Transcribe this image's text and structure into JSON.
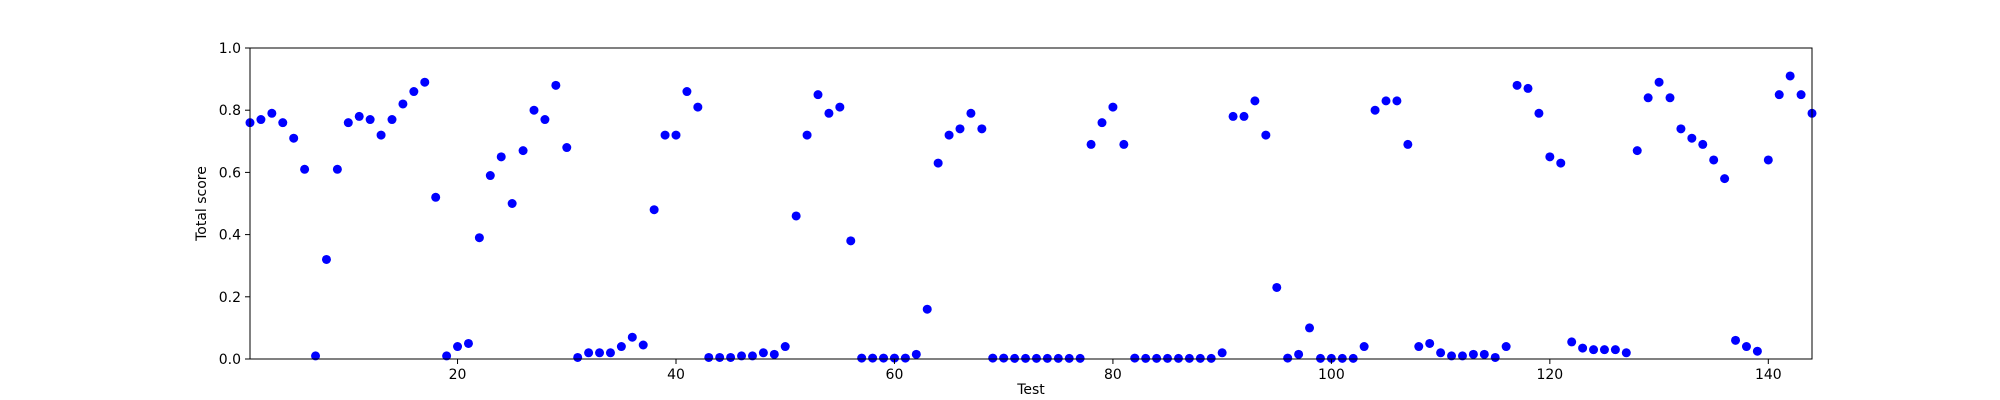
{
  "chart_data": {
    "type": "scatter",
    "title": "",
    "xlabel": "Test",
    "ylabel": "Total score",
    "xlim": [
      1,
      144
    ],
    "ylim": [
      0,
      1.0
    ],
    "x_ticks": [
      20,
      40,
      60,
      80,
      100,
      120,
      140
    ],
    "y_ticks": [
      0.0,
      0.2,
      0.4,
      0.6,
      0.8,
      1.0
    ],
    "x_tick_labels": [
      "20",
      "40",
      "60",
      "80",
      "100",
      "120",
      "140"
    ],
    "y_tick_labels": [
      "0.0",
      "0.2",
      "0.4",
      "0.6",
      "0.8",
      "1.0"
    ],
    "grid": false,
    "marker_color": "#0000ff",
    "series": [
      {
        "x": [
          1,
          2,
          3,
          4,
          5,
          6,
          7,
          8,
          9,
          10,
          11,
          12,
          13,
          14,
          15,
          16,
          17,
          18,
          19,
          20,
          21,
          22,
          23,
          24,
          25,
          26,
          27,
          28,
          29,
          30,
          31,
          32,
          33,
          34,
          35,
          36,
          37,
          38,
          39,
          40,
          41,
          42,
          43,
          44,
          45,
          46,
          47,
          48,
          49,
          50,
          51,
          52,
          53,
          54,
          55,
          56,
          57,
          58,
          59,
          60,
          61,
          62,
          63,
          64,
          65,
          66,
          67,
          68,
          69,
          70,
          71,
          72,
          73,
          74,
          75,
          76,
          77,
          78,
          79,
          80,
          81,
          82,
          83,
          84,
          85,
          86,
          87,
          88,
          89,
          90,
          91,
          92,
          93,
          94,
          95,
          96,
          97,
          98,
          99,
          100,
          101,
          102,
          103,
          104,
          105,
          106,
          107,
          108,
          109,
          110,
          111,
          112,
          113,
          114,
          115,
          116,
          117,
          118,
          119,
          120,
          121,
          122,
          123,
          124,
          125,
          126,
          127,
          128,
          129,
          130,
          131,
          132,
          133,
          134,
          135,
          136,
          137,
          138,
          139,
          140,
          141,
          142,
          143,
          144
        ],
        "y": [
          0.76,
          0.77,
          0.79,
          0.76,
          0.71,
          0.61,
          0.01,
          0.32,
          0.61,
          0.76,
          0.78,
          0.77,
          0.72,
          0.77,
          0.82,
          0.86,
          0.89,
          0.52,
          0.01,
          0.04,
          0.05,
          0.39,
          0.59,
          0.65,
          0.5,
          0.67,
          0.8,
          0.77,
          0.88,
          0.68,
          0.005,
          0.02,
          0.02,
          0.02,
          0.04,
          0.07,
          0.045,
          0.48,
          0.72,
          0.72,
          0.86,
          0.81,
          0.005,
          0.005,
          0.005,
          0.01,
          0.01,
          0.02,
          0.015,
          0.04,
          0.46,
          0.72,
          0.85,
          0.79,
          0.81,
          0.38,
          0.003,
          0.003,
          0.003,
          0.003,
          0.003,
          0.015,
          0.16,
          0.63,
          0.72,
          0.74,
          0.79,
          0.74,
          0.003,
          0.003,
          0.002,
          0.002,
          0.002,
          0.002,
          0.002,
          0.002,
          0.002,
          0.69,
          0.76,
          0.81,
          0.69,
          0.003,
          0.002,
          0.002,
          0.002,
          0.002,
          0.002,
          0.002,
          0.002,
          0.02,
          0.78,
          0.78,
          0.83,
          0.72,
          0.23,
          0.003,
          0.015,
          0.1,
          0.002,
          0.002,
          0.002,
          0.002,
          0.04,
          0.8,
          0.83,
          0.83,
          0.69,
          0.04,
          0.05,
          0.02,
          0.01,
          0.01,
          0.015,
          0.015,
          0.005,
          0.04,
          0.88,
          0.87,
          0.79,
          0.65,
          0.63,
          0.055,
          0.035,
          0.03,
          0.03,
          0.03,
          0.02,
          0.67,
          0.84,
          0.89,
          0.84,
          0.74,
          0.71,
          0.69,
          0.64,
          0.58,
          0.06,
          0.04,
          0.025,
          0.64,
          0.85,
          0.91,
          0.85,
          0.79
        ]
      }
    ]
  }
}
